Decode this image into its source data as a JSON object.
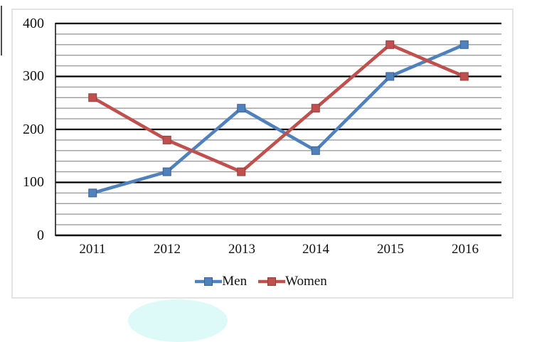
{
  "chart_data": {
    "type": "line",
    "title": "",
    "xlabel": "",
    "ylabel": "",
    "categories": [
      "2011",
      "2012",
      "2013",
      "2014",
      "2015",
      "2016"
    ],
    "series": [
      {
        "name": "Men",
        "color": "#4F81BD",
        "marker_edge": "#3A6191",
        "values": [
          80,
          120,
          240,
          160,
          300,
          360
        ]
      },
      {
        "name": "Women",
        "color": "#C0504D",
        "marker_edge": "#943E3C",
        "values": [
          260,
          180,
          120,
          240,
          360,
          300
        ]
      }
    ],
    "ylim": [
      0,
      400
    ],
    "y_major_step": 100,
    "y_minor_step": 20,
    "yticklabels": [
      "400",
      "300",
      "200",
      "100",
      "0"
    ],
    "marker": "square",
    "grid": "major and minor horizontal gridlines",
    "legend_position": "bottom-center"
  },
  "colors": {
    "major_gridline": "#000000",
    "minor_gridline": "#9c9c9c",
    "axis_line": "#1a1a1a",
    "frame_border": "#e3e3e3",
    "watermark": "#ddfaf8",
    "text": "#111111"
  }
}
